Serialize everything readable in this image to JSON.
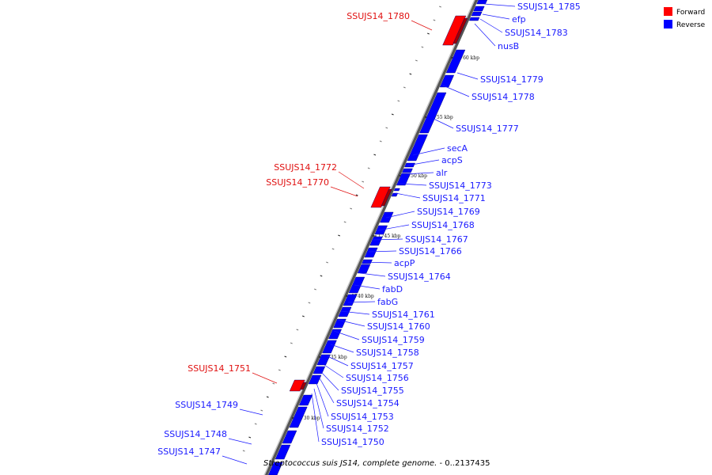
{
  "caption": {
    "organism": "Streptococcus suis JS14, complete genome.",
    "range": " - 0..2137435"
  },
  "legend": [
    {
      "label": "Forward",
      "color": "#ff0000"
    },
    {
      "label": "Reverse",
      "color": "#0000ff"
    }
  ],
  "colors": {
    "forward": "#ff0000",
    "reverse": "#0000ff",
    "backbone": "#888888"
  },
  "scale_ticks": [
    "1760 kbp",
    "1755 kbp",
    "1750 kbp",
    "1745 kbp",
    "1740 kbp",
    "1735 kbp",
    "1730 kbp"
  ],
  "genes_reverse": [
    "SSUJS14_1785",
    "efp",
    "SSUJS14_1783",
    "nusB",
    "SSUJS14_1779",
    "SSUJS14_1778",
    "SSUJS14_1777",
    "secA",
    "acpS",
    "alr",
    "SSUJS14_1773",
    "SSUJS14_1771",
    "SSUJS14_1769",
    "SSUJS14_1768",
    "SSUJS14_1767",
    "SSUJS14_1766",
    "acpP",
    "SSUJS14_1764",
    "fabD",
    "fabG",
    "SSUJS14_1761",
    "SSUJS14_1760",
    "SSUJS14_1759",
    "SSUJS14_1758",
    "SSUJS14_1757",
    "SSUJS14_1756",
    "SSUJS14_1755",
    "SSUJS14_1754",
    "SSUJS14_1753",
    "SSUJS14_1752",
    "SSUJS14_1750"
  ],
  "genes_forward": [
    "SSUJS14_1780",
    "SSUJS14_1772",
    "SSUJS14_1770",
    "SSUJS14_1751"
  ],
  "genes_reverse_left": [
    "SSUJS14_1749",
    "SSUJS14_1748",
    "SSUJS14_1747"
  ]
}
